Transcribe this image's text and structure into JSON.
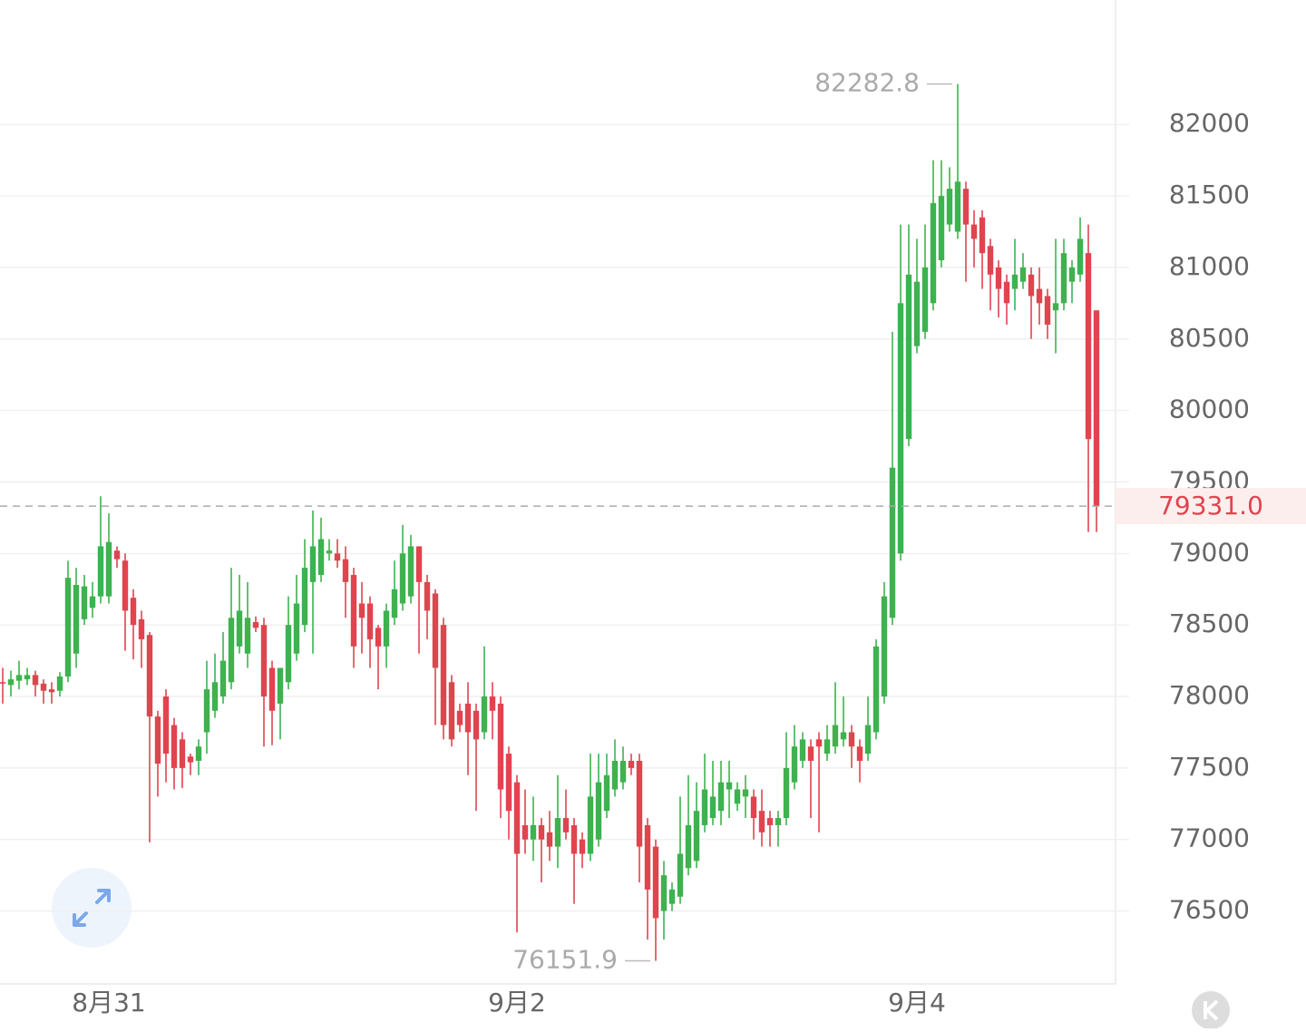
{
  "chart_data": {
    "type": "candlestick",
    "categories": [
      null,
      null,
      null,
      null,
      null,
      null,
      null,
      null,
      null,
      null,
      null,
      null,
      null,
      "8月31",
      null,
      null,
      null,
      null,
      null,
      null,
      null,
      null,
      null,
      null,
      null,
      null,
      null,
      null,
      null,
      null,
      null,
      null,
      null,
      null,
      null,
      null,
      null,
      null,
      null,
      null,
      null,
      null,
      null,
      null,
      null,
      null,
      null,
      null,
      null,
      null,
      null,
      null,
      null,
      null,
      null,
      null,
      null,
      null,
      null,
      null,
      null,
      null,
      null,
      "9月2",
      null,
      null,
      null,
      null,
      null,
      null,
      null,
      null,
      null,
      null,
      null,
      null,
      null,
      null,
      null,
      null,
      null,
      null,
      null,
      null,
      null,
      null,
      null,
      null,
      null,
      null,
      null,
      null,
      null,
      null,
      null,
      null,
      null,
      null,
      null,
      null,
      null,
      null,
      null,
      null,
      null,
      null,
      null,
      null,
      null,
      null,
      null,
      null,
      "9月4",
      null,
      null,
      null,
      null,
      null,
      null,
      null,
      null,
      null,
      null,
      null,
      null,
      null,
      null,
      null,
      null,
      null,
      null,
      null,
      null,
      null,
      null
    ],
    "open": [
      78100,
      78080,
      78110,
      78120,
      78150,
      78090,
      78050,
      78040,
      78140,
      78300,
      78540,
      78620,
      78700,
      78700,
      79020,
      78950,
      78690,
      78540,
      78430,
      77860,
      78000,
      77800,
      77700,
      77580,
      77550,
      77750,
      77900,
      78000,
      78100,
      78350,
      78300,
      78520,
      78500,
      78200,
      77950,
      78100,
      78300,
      78500,
      78800,
      78850,
      79000,
      79000,
      78960,
      78850,
      78650,
      78650,
      78480,
      78350,
      78550,
      78650,
      78700,
      79050,
      78800,
      78720,
      78500,
      78100,
      77900,
      77950,
      77900,
      77750,
      78000,
      77950,
      77600,
      77400,
      77100,
      77000,
      77100,
      77050,
      76950,
      77150,
      77100,
      77000,
      76900,
      77000,
      77200,
      77350,
      77400,
      77550,
      77550,
      77100,
      76950,
      76500,
      76550,
      76600,
      76800,
      76850,
      77100,
      77150,
      77200,
      77350,
      77250,
      77300,
      77300,
      77200,
      77150,
      77100,
      77150,
      77400,
      77550,
      77650,
      77700,
      77600,
      77650,
      77700,
      77750,
      77650,
      77600,
      77750,
      78000,
      78550,
      79000,
      79800,
      80450,
      80550,
      80750,
      81050,
      81300,
      81250,
      81550,
      81300,
      81350,
      81150,
      81000,
      80900,
      80850,
      80900,
      80950,
      80850,
      80800,
      80700,
      80750,
      80900,
      80950,
      81100,
      80700
    ],
    "high": [
      78200,
      78180,
      78250,
      78200,
      78180,
      78120,
      78100,
      78170,
      78950,
      78900,
      78850,
      78800,
      79400,
      79280,
      79050,
      79000,
      78750,
      78600,
      78450,
      77900,
      78050,
      77850,
      77750,
      77600,
      77700,
      78250,
      78300,
      78450,
      78900,
      78850,
      78800,
      78560,
      78550,
      78250,
      78200,
      78700,
      78850,
      79100,
      79300,
      79250,
      79100,
      79100,
      79050,
      78900,
      78800,
      78700,
      78500,
      78650,
      78950,
      79200,
      79130,
      79050,
      78850,
      78750,
      78550,
      78150,
      77950,
      78100,
      77950,
      78350,
      78100,
      78000,
      77650,
      77450,
      77350,
      77300,
      77150,
      77200,
      77450,
      77350,
      77150,
      77050,
      77600,
      77600,
      77600,
      77700,
      77650,
      77600,
      77600,
      77150,
      77000,
      76850,
      76700,
      77300,
      77450,
      77400,
      77600,
      77550,
      77550,
      77550,
      77400,
      77450,
      77350,
      77350,
      77200,
      77200,
      77750,
      77800,
      77750,
      77700,
      77750,
      77800,
      78100,
      78000,
      77800,
      77700,
      78000,
      78400,
      78800,
      80550,
      81300,
      81300,
      81200,
      81300,
      81750,
      81750,
      81700,
      82282.8,
      81600,
      81400,
      81400,
      81200,
      81050,
      80950,
      81200,
      81100,
      81000,
      81000,
      80850,
      81200,
      81200,
      81050,
      81350,
      81300,
      80700
    ],
    "low": [
      77950,
      78000,
      78050,
      78080,
      78000,
      77950,
      77950,
      78000,
      78100,
      78200,
      78500,
      78550,
      78650,
      78650,
      78900,
      78320,
      78260,
      78200,
      76980,
      77300,
      77400,
      77350,
      77360,
      77450,
      77450,
      77600,
      77850,
      77950,
      78050,
      78300,
      78200,
      78450,
      77650,
      77660,
      77700,
      78050,
      78250,
      78450,
      78300,
      78800,
      78950,
      78900,
      78550,
      78200,
      78300,
      78200,
      78050,
      78200,
      78500,
      78600,
      78650,
      78300,
      78400,
      77800,
      77700,
      77650,
      77750,
      77450,
      77200,
      77700,
      77700,
      77150,
      77000,
      76350,
      76900,
      76850,
      76700,
      76850,
      76800,
      77000,
      76550,
      76800,
      76850,
      76950,
      77150,
      77300,
      77350,
      77450,
      76700,
      76300,
      76151.9,
      76300,
      76500,
      76550,
      76750,
      76800,
      77050,
      77100,
      77100,
      77150,
      77200,
      77150,
      77000,
      76950,
      76950,
      76950,
      77100,
      77350,
      77500,
      77150,
      77050,
      77550,
      77600,
      77650,
      77500,
      77400,
      77550,
      77700,
      77950,
      78500,
      78950,
      79750,
      80400,
      80500,
      80700,
      81000,
      81250,
      81200,
      80900,
      81000,
      80850,
      80700,
      80650,
      80600,
      80700,
      80850,
      80500,
      80600,
      80500,
      80400,
      80700,
      80750,
      80900,
      79150,
      79150
    ],
    "close": [
      78090,
      78120,
      78150,
      78150,
      78080,
      78040,
      78030,
      78140,
      78830,
      78780,
      78770,
      78700,
      79050,
      79080,
      78960,
      78600,
      78500,
      78400,
      77860,
      77530,
      77600,
      77500,
      77500,
      77540,
      77650,
      78050,
      78100,
      78250,
      78550,
      78600,
      78550,
      78480,
      78000,
      77900,
      78200,
      78500,
      78650,
      78900,
      79050,
      79100,
      79020,
      78950,
      78800,
      78350,
      78550,
      78400,
      78350,
      78600,
      78750,
      79000,
      79050,
      78800,
      78600,
      78200,
      77800,
      77700,
      77800,
      77750,
      77700,
      78000,
      77900,
      77350,
      77200,
      76900,
      77000,
      77100,
      77000,
      76950,
      77150,
      77050,
      76900,
      76900,
      77300,
      77400,
      77450,
      77550,
      77550,
      77500,
      76950,
      76650,
      76450,
      76750,
      76650,
      76900,
      77100,
      77200,
      77350,
      77300,
      77400,
      77400,
      77350,
      77350,
      77150,
      77050,
      77100,
      77150,
      77500,
      77650,
      77700,
      77550,
      77650,
      77700,
      77800,
      77750,
      77650,
      77550,
      77800,
      78350,
      78700,
      79600,
      80750,
      80950,
      80900,
      81000,
      81450,
      81500,
      81550,
      81600,
      81300,
      81200,
      81100,
      80950,
      80850,
      80750,
      80950,
      81000,
      80800,
      80750,
      80600,
      80750,
      81100,
      81000,
      81200,
      79800,
      79331
    ],
    "up_color": "#3db24f",
    "down_color": "#e0444f",
    "last_price": {
      "value": 79331,
      "label": "79331.0"
    },
    "ylim": [
      75990,
      82870
    ],
    "yticks": [
      76500,
      77000,
      77500,
      78000,
      78500,
      79000,
      79500,
      80000,
      80500,
      81000,
      81500,
      82000
    ],
    "grid": true
  }
}
